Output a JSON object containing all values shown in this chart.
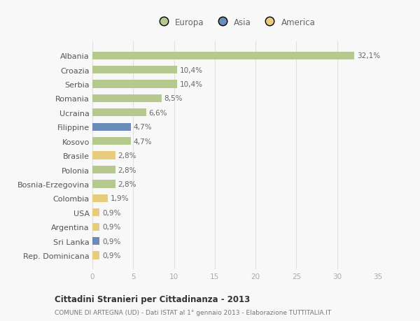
{
  "countries": [
    "Albania",
    "Croazia",
    "Serbia",
    "Romania",
    "Ucraina",
    "Filippine",
    "Kosovo",
    "Brasile",
    "Polonia",
    "Bosnia-Erzegovina",
    "Colombia",
    "USA",
    "Argentina",
    "Sri Lanka",
    "Rep. Dominicana"
  ],
  "values": [
    32.1,
    10.4,
    10.4,
    8.5,
    6.6,
    4.7,
    4.7,
    2.8,
    2.8,
    2.8,
    1.9,
    0.9,
    0.9,
    0.9,
    0.9
  ],
  "labels": [
    "32,1%",
    "10,4%",
    "10,4%",
    "8,5%",
    "6,6%",
    "4,7%",
    "4,7%",
    "2,8%",
    "2,8%",
    "2,8%",
    "1,9%",
    "0,9%",
    "0,9%",
    "0,9%",
    "0,9%"
  ],
  "continents": [
    "Europa",
    "Europa",
    "Europa",
    "Europa",
    "Europa",
    "Asia",
    "Europa",
    "America",
    "Europa",
    "Europa",
    "America",
    "America",
    "America",
    "Asia",
    "America"
  ],
  "colors": {
    "Europa": "#b5c98e",
    "Asia": "#6b8cba",
    "America": "#e8cc7e"
  },
  "title": "Cittadini Stranieri per Cittadinanza - 2013",
  "subtitle": "COMUNE DI ARTEGNA (UD) - Dati ISTAT al 1° gennaio 2013 - Elaborazione TUTTITALIA.IT",
  "xlim": [
    0,
    35
  ],
  "xticks": [
    0,
    5,
    10,
    15,
    20,
    25,
    30,
    35
  ],
  "bg_color": "#f8f8f8",
  "grid_color": "#e0e0e0",
  "bar_height": 0.55
}
